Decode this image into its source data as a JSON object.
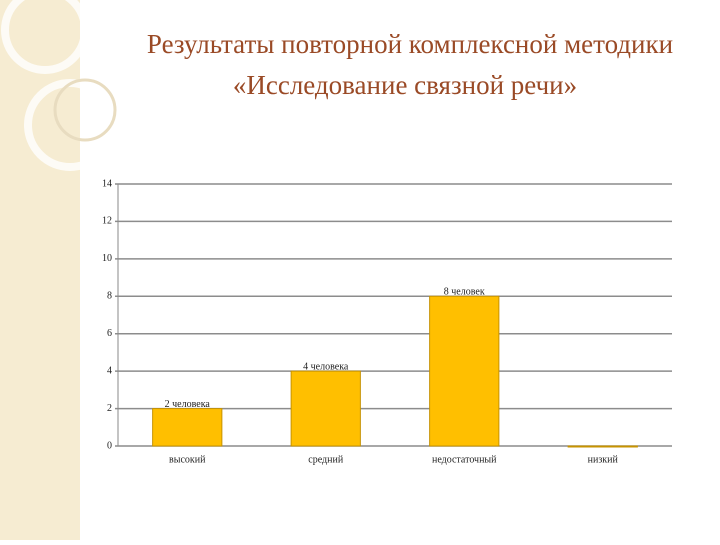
{
  "chart_data": {
    "type": "bar",
    "title": [
      "Результаты повторной комплексной методики",
      "«Исследование связной речи»"
    ],
    "categories": [
      "высокий",
      "средний",
      "недостаточный",
      "низкий"
    ],
    "values": [
      2,
      4,
      8,
      0
    ],
    "value_labels": [
      "2 человека",
      "4 человека",
      "8 человек",
      null
    ],
    "color": "#ffbf00",
    "ylim": [
      0,
      14
    ],
    "yticks": [
      0,
      2,
      4,
      6,
      8,
      10,
      12,
      14
    ],
    "grid": true
  }
}
